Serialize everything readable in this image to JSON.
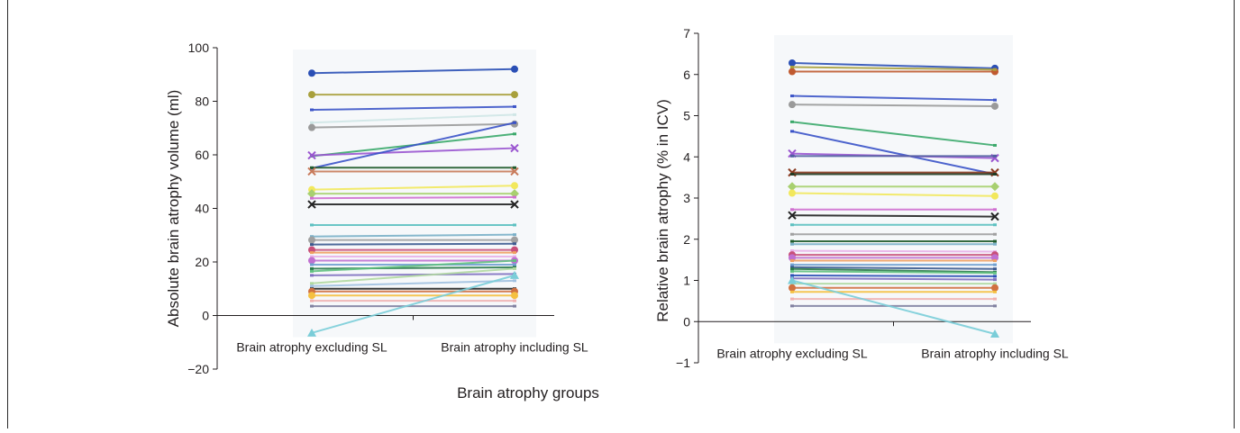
{
  "figure": {
    "common_xlabel": "Brain atrophy groups"
  },
  "chart_data": [
    {
      "type": "line",
      "ylabel": "Absolute brain atrophy volume (ml)",
      "categories": [
        "Brain atrophy excluding SL",
        "Brain atrophy including SL"
      ],
      "ylim": [
        -20,
        100
      ],
      "yticks": [
        -20,
        0,
        20,
        40,
        60,
        80,
        100
      ],
      "ytick_labels": [
        "−20",
        "0",
        "20",
        "40",
        "60",
        "80",
        "100"
      ],
      "grid": false,
      "series": [
        {
          "values": [
            90.5,
            92.0
          ],
          "color": "#2a4fb5",
          "marker": "circle"
        },
        {
          "values": [
            82.5,
            82.5
          ],
          "color": "#a8a03c",
          "marker": "circle"
        },
        {
          "values": [
            76.8,
            78.0
          ],
          "color": "#3d55c8",
          "marker": "none"
        },
        {
          "values": [
            72.0,
            75.0
          ],
          "color": "#cfe6e6",
          "marker": "none"
        },
        {
          "values": [
            70.2,
            71.5
          ],
          "color": "#9a9a9a",
          "marker": "circle"
        },
        {
          "values": [
            59.5,
            67.8
          ],
          "color": "#3aa86a",
          "marker": "none"
        },
        {
          "values": [
            59.8,
            62.5
          ],
          "color": "#9a55d0",
          "marker": "x"
        },
        {
          "values": [
            55.0,
            72.0
          ],
          "color": "#3a52c8",
          "marker": "none"
        },
        {
          "values": [
            55.2,
            55.2
          ],
          "color": "#1f5a2a",
          "marker": "none"
        },
        {
          "values": [
            53.8,
            53.8
          ],
          "color": "#c87a5a",
          "marker": "x"
        },
        {
          "values": [
            47.0,
            48.5
          ],
          "color": "#f2e85c",
          "marker": "circle"
        },
        {
          "values": [
            45.5,
            45.5
          ],
          "color": "#a8d070",
          "marker": "diamond"
        },
        {
          "values": [
            43.8,
            44.2
          ],
          "color": "#d070d0",
          "marker": "none"
        },
        {
          "values": [
            41.5,
            41.5
          ],
          "color": "#222222",
          "marker": "x"
        },
        {
          "values": [
            33.8,
            33.8
          ],
          "color": "#5cc0c0",
          "marker": "none"
        },
        {
          "values": [
            29.5,
            30.2
          ],
          "color": "#7ab0c8",
          "marker": "none"
        },
        {
          "values": [
            28.2,
            28.2
          ],
          "color": "#a0a0a0",
          "marker": "circle"
        },
        {
          "values": [
            26.5,
            26.8
          ],
          "color": "#3c5a90",
          "marker": "none"
        },
        {
          "values": [
            24.5,
            24.5
          ],
          "color": "#c8507a",
          "marker": "circle"
        },
        {
          "values": [
            23.5,
            23.5
          ],
          "color": "#f0a060",
          "marker": "none"
        },
        {
          "values": [
            22.0,
            22.0
          ],
          "color": "#e8b0e8",
          "marker": "none"
        },
        {
          "values": [
            20.5,
            20.5
          ],
          "color": "#c070d0",
          "marker": "circle"
        },
        {
          "values": [
            19.0,
            19.0
          ],
          "color": "#70a0d0",
          "marker": "none"
        },
        {
          "values": [
            17.5,
            18.0
          ],
          "color": "#2a7a4a",
          "marker": "none"
        },
        {
          "values": [
            16.5,
            20.5
          ],
          "color": "#60c080",
          "marker": "none"
        },
        {
          "values": [
            15.0,
            15.5
          ],
          "color": "#8070c0",
          "marker": "none"
        },
        {
          "values": [
            12.0,
            17.5
          ],
          "color": "#b0d8a0",
          "marker": "none"
        },
        {
          "values": [
            11.0,
            13.0
          ],
          "color": "#a0c0e0",
          "marker": "none"
        },
        {
          "values": [
            10.0,
            10.0
          ],
          "color": "#222222",
          "marker": "none"
        },
        {
          "values": [
            9.0,
            9.0
          ],
          "color": "#d07040",
          "marker": "circle"
        },
        {
          "values": [
            7.5,
            7.5
          ],
          "color": "#f5c040",
          "marker": "circle"
        },
        {
          "values": [
            5.5,
            5.5
          ],
          "color": "#f0b0b0",
          "marker": "none"
        },
        {
          "values": [
            3.5,
            3.5
          ],
          "color": "#8080a0",
          "marker": "none"
        },
        {
          "values": [
            -6.5,
            15.0
          ],
          "color": "#7acdd8",
          "marker": "triangle"
        }
      ]
    },
    {
      "type": "line",
      "ylabel": "Relative brain atrophy (% in ICV)",
      "categories": [
        "Brain atrophy excluding SL",
        "Brain atrophy including SL"
      ],
      "ylim": [
        -1,
        7
      ],
      "yticks": [
        -1,
        0,
        1,
        2,
        3,
        4,
        5,
        6,
        7
      ],
      "ytick_labels": [
        "−1",
        "0",
        "1",
        "2",
        "3",
        "4",
        "5",
        "6",
        "7"
      ],
      "grid": false,
      "series": [
        {
          "values": [
            6.28,
            6.15
          ],
          "color": "#2a4fb5",
          "marker": "circle"
        },
        {
          "values": [
            6.07,
            6.07
          ],
          "color": "#c05a30",
          "marker": "circle"
        },
        {
          "values": [
            6.18,
            6.12
          ],
          "color": "#a8a03c",
          "marker": "none"
        },
        {
          "values": [
            5.48,
            5.38
          ],
          "color": "#3d55c8",
          "marker": "none"
        },
        {
          "values": [
            5.27,
            5.23
          ],
          "color": "#9a9a9a",
          "marker": "circle"
        },
        {
          "values": [
            4.85,
            4.28
          ],
          "color": "#3aa86a",
          "marker": "none"
        },
        {
          "values": [
            4.62,
            3.58
          ],
          "color": "#3a52c8",
          "marker": "none"
        },
        {
          "values": [
            4.08,
            3.97
          ],
          "color": "#9a55d0",
          "marker": "x"
        },
        {
          "values": [
            4.02,
            4.02
          ],
          "color": "#5060a0",
          "marker": "none"
        },
        {
          "values": [
            3.62,
            3.62
          ],
          "color": "#8a3a20",
          "marker": "x"
        },
        {
          "values": [
            3.58,
            3.58
          ],
          "color": "#1f3a20",
          "marker": "none"
        },
        {
          "values": [
            3.28,
            3.28
          ],
          "color": "#a8d070",
          "marker": "diamond"
        },
        {
          "values": [
            3.12,
            3.05
          ],
          "color": "#f2e85c",
          "marker": "circle"
        },
        {
          "values": [
            2.72,
            2.72
          ],
          "color": "#d070d0",
          "marker": "none"
        },
        {
          "values": [
            2.58,
            2.55
          ],
          "color": "#222222",
          "marker": "x"
        },
        {
          "values": [
            2.35,
            2.35
          ],
          "color": "#5cc0c0",
          "marker": "none"
        },
        {
          "values": [
            2.12,
            2.12
          ],
          "color": "#a0a0a0",
          "marker": "none"
        },
        {
          "values": [
            1.95,
            1.95
          ],
          "color": "#1f5a2a",
          "marker": "none"
        },
        {
          "values": [
            1.88,
            1.88
          ],
          "color": "#7ab0c8",
          "marker": "none"
        },
        {
          "values": [
            1.72,
            1.7
          ],
          "color": "#e8b0e8",
          "marker": "none"
        },
        {
          "values": [
            1.62,
            1.62
          ],
          "color": "#c8507a",
          "marker": "circle"
        },
        {
          "values": [
            1.55,
            1.55
          ],
          "color": "#c070d0",
          "marker": "circle"
        },
        {
          "values": [
            1.48,
            1.48
          ],
          "color": "#f0a060",
          "marker": "none"
        },
        {
          "values": [
            1.38,
            1.38
          ],
          "color": "#70a0d0",
          "marker": "none"
        },
        {
          "values": [
            1.32,
            1.28
          ],
          "color": "#3c5a90",
          "marker": "none"
        },
        {
          "values": [
            1.28,
            1.2
          ],
          "color": "#2a7a4a",
          "marker": "none"
        },
        {
          "values": [
            1.22,
            1.18
          ],
          "color": "#60c080",
          "marker": "none"
        },
        {
          "values": [
            1.12,
            1.1
          ],
          "color": "#2a4fb5",
          "marker": "none"
        },
        {
          "values": [
            1.05,
            1.02
          ],
          "color": "#8070c0",
          "marker": "none"
        },
        {
          "values": [
            0.92,
            0.92
          ],
          "color": "#b0d8a0",
          "marker": "none"
        },
        {
          "values": [
            0.82,
            0.82
          ],
          "color": "#d07040",
          "marker": "circle"
        },
        {
          "values": [
            0.72,
            0.72
          ],
          "color": "#f5c040",
          "marker": "none"
        },
        {
          "values": [
            0.55,
            0.55
          ],
          "color": "#f0b0b0",
          "marker": "none"
        },
        {
          "values": [
            0.38,
            0.38
          ],
          "color": "#8080a0",
          "marker": "none"
        },
        {
          "values": [
            1.0,
            -0.3
          ],
          "color": "#7acdd8",
          "marker": "triangle"
        }
      ]
    }
  ]
}
